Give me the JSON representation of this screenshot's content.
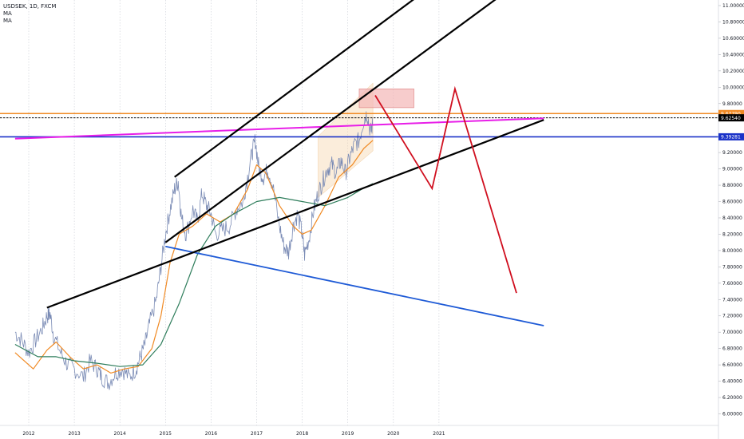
{
  "chart_data": {
    "type": "line",
    "legend": {
      "symbol": "USDSEK, 1D, FXCM",
      "indicators": [
        "MA",
        "MA"
      ]
    },
    "x_ticks": [
      "2012",
      "2013",
      "2014",
      "2015",
      "2016",
      "2017",
      "2018",
      "2019",
      "2020",
      "2021"
    ],
    "y_ticks": [
      "11.00000",
      "10.80000",
      "10.60000",
      "10.40000",
      "10.20000",
      "10.00000",
      "9.80000",
      "9.60000",
      "9.40000",
      "9.20000",
      "9.00000",
      "8.80000",
      "8.60000",
      "8.40000",
      "8.20000",
      "8.00000",
      "7.80000",
      "7.60000",
      "7.40000",
      "7.20000",
      "7.00000",
      "6.80000",
      "6.60000",
      "6.40000",
      "6.20000",
      "6.00000"
    ],
    "ylim": [
      5.9,
      11.05
    ],
    "price_series": {
      "name": "USDSEK",
      "color": "#7a8bb5",
      "points": [
        [
          2011.7,
          7.0
        ],
        [
          2011.85,
          6.9
        ],
        [
          2012.0,
          6.75
        ],
        [
          2012.15,
          6.9
        ],
        [
          2012.3,
          7.05
        ],
        [
          2012.4,
          7.2
        ],
        [
          2012.47,
          7.22
        ],
        [
          2012.55,
          6.95
        ],
        [
          2012.7,
          6.75
        ],
        [
          2012.85,
          6.6
        ],
        [
          2013.0,
          6.55
        ],
        [
          2013.2,
          6.45
        ],
        [
          2013.35,
          6.65
        ],
        [
          2013.5,
          6.55
        ],
        [
          2013.6,
          6.45
        ],
        [
          2013.75,
          6.38
        ],
        [
          2013.9,
          6.5
        ],
        [
          2014.05,
          6.55
        ],
        [
          2014.2,
          6.45
        ],
        [
          2014.35,
          6.55
        ],
        [
          2014.45,
          6.7
        ],
        [
          2014.55,
          6.85
        ],
        [
          2014.65,
          7.1
        ],
        [
          2014.8,
          7.4
        ],
        [
          2014.9,
          7.8
        ],
        [
          2015.0,
          8.2
        ],
        [
          2015.1,
          8.5
        ],
        [
          2015.2,
          8.75
        ],
        [
          2015.28,
          8.85
        ],
        [
          2015.35,
          8.4
        ],
        [
          2015.45,
          8.2
        ],
        [
          2015.6,
          8.5
        ],
        [
          2015.7,
          8.35
        ],
        [
          2015.8,
          8.7
        ],
        [
          2015.9,
          8.55
        ],
        [
          2016.0,
          8.45
        ],
        [
          2016.1,
          8.2
        ],
        [
          2016.25,
          8.25
        ],
        [
          2016.4,
          8.3
        ],
        [
          2016.55,
          8.5
        ],
        [
          2016.7,
          8.6
        ],
        [
          2016.8,
          8.9
        ],
        [
          2016.9,
          9.2
        ],
        [
          2016.97,
          9.35
        ],
        [
          2017.05,
          9.0
        ],
        [
          2017.15,
          8.9
        ],
        [
          2017.25,
          9.0
        ],
        [
          2017.35,
          8.8
        ],
        [
          2017.5,
          8.3
        ],
        [
          2017.6,
          8.05
        ],
        [
          2017.7,
          7.98
        ],
        [
          2017.8,
          8.3
        ],
        [
          2017.9,
          8.45
        ],
        [
          2018.0,
          8.2
        ],
        [
          2018.05,
          7.95
        ],
        [
          2018.15,
          8.15
        ],
        [
          2018.25,
          8.5
        ],
        [
          2018.35,
          8.7
        ],
        [
          2018.45,
          8.85
        ],
        [
          2018.55,
          9.0
        ],
        [
          2018.65,
          9.05
        ],
        [
          2018.75,
          8.95
        ],
        [
          2018.85,
          9.1
        ],
        [
          2018.95,
          8.95
        ],
        [
          2019.05,
          9.15
        ],
        [
          2019.15,
          9.3
        ],
        [
          2019.25,
          9.35
        ],
        [
          2019.35,
          9.6
        ],
        [
          2019.42,
          9.68
        ],
        [
          2019.5,
          9.45
        ],
        [
          2019.55,
          9.55
        ]
      ]
    },
    "moving_averages": [
      {
        "label": "MA",
        "color": "#f08a24",
        "points": [
          [
            2011.7,
            6.75
          ],
          [
            2012.1,
            6.55
          ],
          [
            2012.4,
            6.78
          ],
          [
            2012.6,
            6.88
          ],
          [
            2012.9,
            6.7
          ],
          [
            2013.2,
            6.55
          ],
          [
            2013.5,
            6.6
          ],
          [
            2013.8,
            6.5
          ],
          [
            2014.1,
            6.55
          ],
          [
            2014.4,
            6.58
          ],
          [
            2014.7,
            6.8
          ],
          [
            2014.9,
            7.2
          ],
          [
            2015.1,
            7.85
          ],
          [
            2015.3,
            8.2
          ],
          [
            2015.6,
            8.3
          ],
          [
            2015.9,
            8.45
          ],
          [
            2016.2,
            8.35
          ],
          [
            2016.5,
            8.45
          ],
          [
            2016.8,
            8.75
          ],
          [
            2017.0,
            9.05
          ],
          [
            2017.2,
            8.95
          ],
          [
            2017.5,
            8.55
          ],
          [
            2017.8,
            8.3
          ],
          [
            2018.0,
            8.2
          ],
          [
            2018.2,
            8.25
          ],
          [
            2018.5,
            8.55
          ],
          [
            2018.8,
            8.9
          ],
          [
            2019.1,
            9.05
          ],
          [
            2019.35,
            9.25
          ],
          [
            2019.55,
            9.35
          ]
        ]
      },
      {
        "label": "MA",
        "color": "#2e7d5b",
        "points": [
          [
            2011.7,
            6.85
          ],
          [
            2012.2,
            6.7
          ],
          [
            2012.6,
            6.7
          ],
          [
            2013.0,
            6.65
          ],
          [
            2013.5,
            6.62
          ],
          [
            2014.0,
            6.58
          ],
          [
            2014.5,
            6.6
          ],
          [
            2014.9,
            6.85
          ],
          [
            2015.3,
            7.35
          ],
          [
            2015.7,
            7.95
          ],
          [
            2016.1,
            8.3
          ],
          [
            2016.5,
            8.45
          ],
          [
            2017.0,
            8.6
          ],
          [
            2017.5,
            8.65
          ],
          [
            2018.0,
            8.6
          ],
          [
            2018.5,
            8.55
          ],
          [
            2019.0,
            8.65
          ],
          [
            2019.3,
            8.75
          ],
          [
            2019.55,
            8.82
          ]
        ]
      }
    ],
    "horizontal_levels": [
      {
        "label": "9.67790",
        "value": 9.6779,
        "color": "#f08a24",
        "style": "solid",
        "tag_bg": "#f08a24",
        "tag_fg": "#ffffff"
      },
      {
        "label": "9.62540",
        "value": 9.6254,
        "color": "#000000",
        "style": "dashed",
        "tag_bg": "#000000",
        "tag_fg": "#ffffff"
      },
      {
        "label": "9.39281",
        "value": 9.39281,
        "color": "#1a32c8",
        "style": "solid",
        "tag_bg": "#1a32c8",
        "tag_fg": "#ffffff"
      }
    ],
    "drawings": {
      "black_trend_lines": [
        [
          [
            2015.2,
            8.9
          ],
          [
            2020.5,
            11.1
          ]
        ],
        [
          [
            2015.0,
            8.1
          ],
          [
            2022.3,
            11.1
          ]
        ],
        [
          [
            2012.4,
            7.3
          ],
          [
            2023.3,
            9.6
          ]
        ]
      ],
      "magenta_line": [
        [
          2011.7,
          9.37
        ],
        [
          2023.3,
          9.62
        ]
      ],
      "blue_down_line": [
        [
          2015.0,
          8.05
        ],
        [
          2023.3,
          7.08
        ]
      ],
      "forecast_path": [
        [
          2019.6,
          9.9
        ],
        [
          2020.85,
          8.76
        ],
        [
          2021.35,
          9.98
        ],
        [
          2022.7,
          7.48
        ]
      ],
      "target_box": [
        [
          2019.25,
          9.98
        ],
        [
          2020.45,
          9.75
        ]
      ],
      "channel_box": [
        [
          2018.35,
          9.4
        ],
        [
          2019.55,
          10.05
        ],
        [
          2019.55,
          9.22
        ],
        [
          2018.35,
          8.65
        ]
      ]
    }
  }
}
